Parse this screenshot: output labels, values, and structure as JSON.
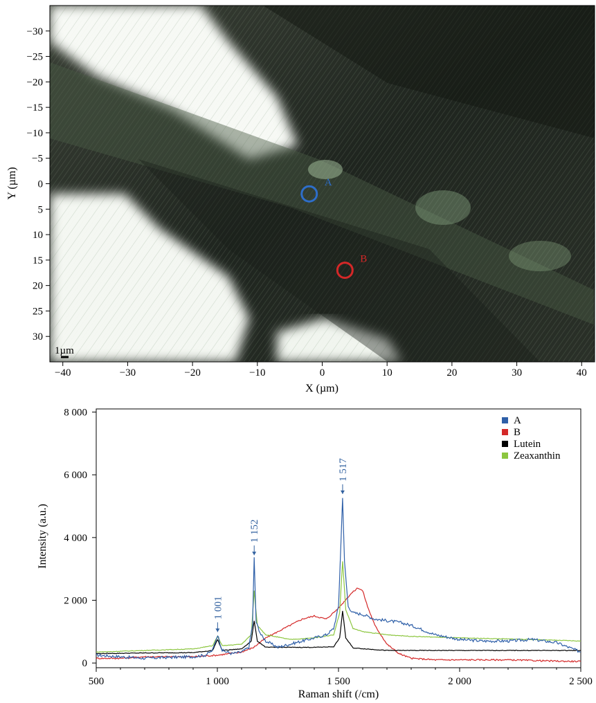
{
  "chart_data": [
    {
      "type": "image",
      "xlabel": "X (µm)",
      "ylabel": "Y (µm)",
      "xlim": [
        -42,
        42
      ],
      "ylim": [
        -35,
        35
      ],
      "y_inverted": true,
      "xticks": [
        -40,
        -30,
        -20,
        -10,
        0,
        10,
        20,
        30,
        40
      ],
      "xtick_labels": [
        "−40",
        "−30",
        "−20",
        "−10",
        "0",
        "10",
        "20",
        "30",
        "40"
      ],
      "yticks": [
        -30,
        -25,
        -20,
        -15,
        -10,
        -5,
        0,
        5,
        10,
        15,
        20,
        25,
        30
      ],
      "ytick_labels": [
        "−30",
        "−25",
        "−20",
        "−15",
        "−10",
        "−5",
        "0",
        "5",
        "10",
        "15",
        "20",
        "25",
        "30"
      ],
      "scale_bar_label": "1µm",
      "points": [
        {
          "label": "A",
          "x": -2,
          "y": 2,
          "color": "#2e6ec9"
        },
        {
          "label": "B",
          "x": 3.5,
          "y": 17,
          "color": "#d42828"
        }
      ]
    },
    {
      "type": "line",
      "xlabel": "Raman shift (/cm)",
      "ylabel": "Intensity (a.u.)",
      "xlim": [
        500,
        2500
      ],
      "ylim": [
        -150,
        8100
      ],
      "xticks": [
        500,
        1000,
        1500,
        2000,
        2500
      ],
      "xtick_labels": [
        "500",
        "1 000",
        "1 500",
        "2 000",
        "2 500"
      ],
      "yticks": [
        0,
        2000,
        4000,
        6000,
        8000
      ],
      "ytick_labels": [
        "0",
        "2 000",
        "4 000",
        "6 000",
        "8 000"
      ],
      "legend": "top-right",
      "annotations": [
        {
          "text": "1 001",
          "x": 1001,
          "y": 900
        },
        {
          "text": "1 152",
          "x": 1152,
          "y": 3350
        },
        {
          "text": "1 517",
          "x": 1517,
          "y": 5300
        }
      ],
      "series": [
        {
          "name": "A",
          "color": "#2e5fa8",
          "x": [
            500,
            600,
            700,
            800,
            900,
            950,
            980,
            1001,
            1020,
            1060,
            1100,
            1130,
            1145,
            1152,
            1160,
            1180,
            1200,
            1250,
            1300,
            1350,
            1400,
            1450,
            1480,
            1500,
            1510,
            1517,
            1525,
            1540,
            1560,
            1600,
            1650,
            1700,
            1750,
            1800,
            1900,
            2000,
            2100,
            2200,
            2300,
            2400,
            2500
          ],
          "y": [
            250,
            200,
            150,
            180,
            200,
            250,
            400,
            900,
            400,
            300,
            350,
            500,
            1200,
            3350,
            1300,
            900,
            700,
            500,
            600,
            700,
            800,
            900,
            1100,
            1800,
            3800,
            5300,
            3200,
            1800,
            1600,
            1550,
            1400,
            1350,
            1300,
            1200,
            900,
            750,
            700,
            700,
            750,
            650,
            350
          ]
        },
        {
          "name": "B",
          "color": "#d42828",
          "x": [
            500,
            600,
            700,
            800,
            900,
            1000,
            1100,
            1150,
            1200,
            1250,
            1300,
            1350,
            1400,
            1450,
            1500,
            1550,
            1580,
            1600,
            1620,
            1650,
            1700,
            1750,
            1800,
            1900,
            2000,
            2100,
            2200,
            2300,
            2400,
            2500
          ],
          "y": [
            150,
            150,
            200,
            200,
            200,
            250,
            350,
            500,
            800,
            1000,
            1200,
            1400,
            1500,
            1400,
            1750,
            2200,
            2400,
            2300,
            1800,
            1200,
            600,
            300,
            150,
            100,
            100,
            100,
            100,
            80,
            60,
            50
          ]
        },
        {
          "name": "Lutein",
          "color": "#000000",
          "x": [
            500,
            700,
            900,
            980,
            1001,
            1020,
            1100,
            1140,
            1152,
            1165,
            1200,
            1300,
            1400,
            1480,
            1505,
            1517,
            1530,
            1560,
            1700,
            2000,
            2300,
            2500
          ],
          "y": [
            300,
            320,
            330,
            400,
            750,
            400,
            450,
            700,
            1350,
            700,
            500,
            500,
            500,
            520,
            800,
            1650,
            800,
            480,
            400,
            400,
            400,
            400
          ]
        },
        {
          "name": "Zeaxanthin",
          "color": "#8cc63f",
          "x": [
            500,
            700,
            900,
            980,
            1001,
            1020,
            1100,
            1140,
            1152,
            1165,
            1200,
            1300,
            1400,
            1480,
            1505,
            1517,
            1530,
            1560,
            1600,
            1700,
            1800,
            2000,
            2300,
            2500
          ],
          "y": [
            350,
            400,
            450,
            550,
            850,
            550,
            600,
            900,
            2300,
            1200,
            900,
            750,
            800,
            900,
            1600,
            3250,
            1700,
            1100,
            1000,
            900,
            850,
            800,
            750,
            700
          ]
        }
      ]
    }
  ]
}
